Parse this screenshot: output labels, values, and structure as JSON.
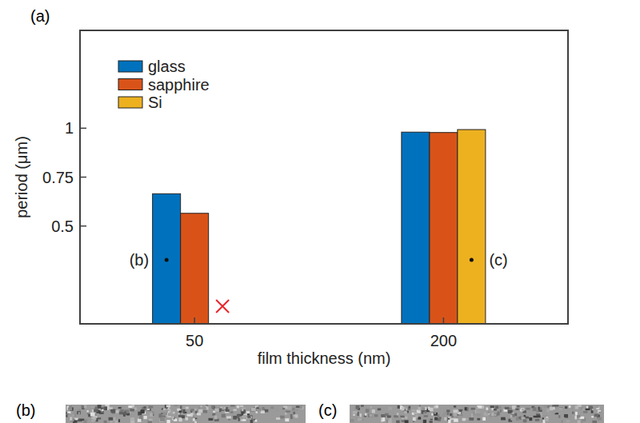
{
  "chart_data": {
    "type": "bar",
    "x_label": "film thickness (nm)",
    "y_label": "period (μm)",
    "categories": [
      "50",
      "200"
    ],
    "series": [
      {
        "name": "glass",
        "color": "#0072bd",
        "values": [
          0.665,
          0.98
        ]
      },
      {
        "name": "sapphire",
        "color": "#d95319",
        "values": [
          0.565,
          0.978
        ]
      },
      {
        "name": "Si",
        "color": "#edb120",
        "values": [
          null,
          0.993
        ]
      }
    ],
    "ylim": [
      0,
      1.5
    ],
    "yticks": [
      0.5,
      0.75,
      1
    ],
    "legend": "upper left",
    "annotations": [
      {
        "text": "(b)",
        "series": "glass",
        "category": "50"
      },
      {
        "text": "(c)",
        "series": "Si",
        "category": "200"
      }
    ]
  },
  "panel_labels": [
    "(a)",
    "(b)",
    "(c)"
  ]
}
